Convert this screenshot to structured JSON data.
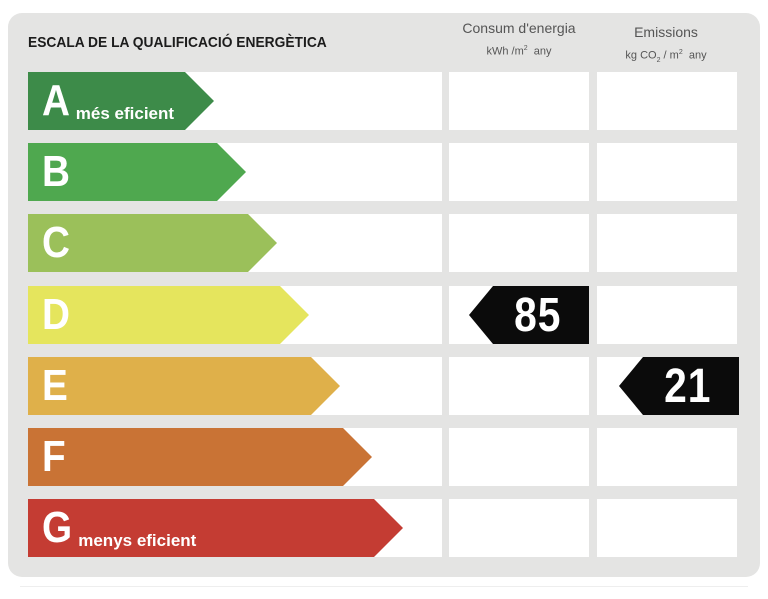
{
  "title": "ESCALA DE LA QUALIFICACIÓ ENERGÈTICA",
  "columns": {
    "consumption": {
      "label": "Consum d'energia",
      "unit_main": "kWh /m",
      "unit_sup": "2",
      "unit_tail": "  any"
    },
    "emissions": {
      "label": "Emissions",
      "unit_main": "kg CO",
      "unit_sub": "2",
      "unit_mid": " / m",
      "unit_sup": "2",
      "unit_tail": "  any"
    }
  },
  "grades": [
    {
      "letter": "A",
      "desc": "més eficient",
      "color": "#3d8b49"
    },
    {
      "letter": "B",
      "desc": "",
      "color": "#4fa84f"
    },
    {
      "letter": "C",
      "desc": "",
      "color": "#9bc05a"
    },
    {
      "letter": "D",
      "desc": "",
      "color": "#e5e55d"
    },
    {
      "letter": "E",
      "desc": "",
      "color": "#dfb04a"
    },
    {
      "letter": "F",
      "desc": "",
      "color": "#c97335"
    },
    {
      "letter": "G",
      "desc": "menys eficient",
      "color": "#c43c33"
    }
  ],
  "consumption_rating": {
    "grade": "D",
    "value": "85"
  },
  "emissions_rating": {
    "grade": "E",
    "value": "21"
  }
}
